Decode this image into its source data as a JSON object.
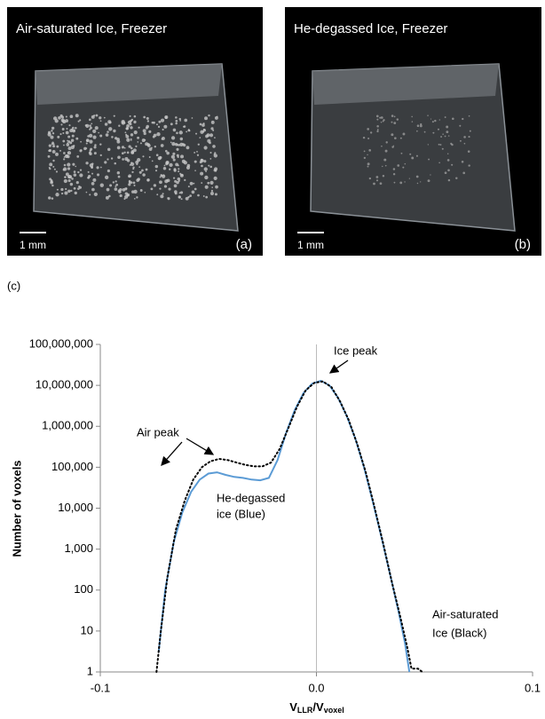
{
  "panels": [
    {
      "title": "Air-saturated Ice, Freezer",
      "scale": "1 mm",
      "label": "(a)"
    },
    {
      "title": "He-degassed Ice, Freezer",
      "scale": "1 mm",
      "label": "(b)"
    }
  ],
  "chart_data": {
    "type": "line",
    "panel_label": "(c)",
    "ylabel": "Number of voxels",
    "xlabel": {
      "v1": "V",
      "s1": "LLR",
      "v2": "/V",
      "s2": "voxel"
    },
    "yscale": "log",
    "xlim": [
      -0.1,
      0.1
    ],
    "ylim": [
      1,
      100000000
    ],
    "xticks": [
      -0.1,
      {
        "value": 0,
        "label": "0.0"
      },
      0.1
    ],
    "yticks": [
      1,
      10,
      100,
      {
        "value": 1000,
        "label": "1,000"
      },
      {
        "value": 10000,
        "label": "10,000"
      },
      {
        "value": 100000,
        "label": "100,000"
      },
      {
        "value": 1000000,
        "label": "1,000,000"
      },
      {
        "value": 10000000,
        "label": "10,000,000"
      },
      {
        "value": 100000000,
        "label": "100,000,000"
      }
    ],
    "vline": 0,
    "annotations": [
      "Ice peak",
      "Air peak",
      "He-degassed",
      "ice (Blue)",
      "Air-saturated",
      "Ice (Black)"
    ],
    "series": [
      {
        "color": "#5b9bd5",
        "style": "solid",
        "x": [
          -0.073,
          -0.07,
          -0.066,
          -0.062,
          -0.058,
          -0.054,
          -0.05,
          -0.046,
          -0.042,
          -0.038,
          -0.034,
          -0.03,
          -0.026,
          -0.022,
          -0.018,
          -0.014,
          -0.01,
          -0.006,
          -0.002,
          0.002,
          0.006,
          0.01,
          0.014,
          0.018,
          0.022,
          0.026,
          0.03,
          0.034,
          0.038,
          0.041,
          0.043
        ],
        "values": [
          3,
          100,
          1500,
          8000,
          25000,
          50000,
          70000,
          75000,
          65000,
          58000,
          55000,
          50000,
          48000,
          55000,
          150000,
          700000,
          2500000,
          6500000,
          11000000,
          13000000,
          10000000,
          5000000,
          1800000,
          500000,
          100000,
          15000,
          2000,
          250,
          30,
          5,
          1
        ]
      },
      {
        "color": "#000000",
        "style": "dotted",
        "x": [
          -0.074,
          -0.072,
          -0.069,
          -0.065,
          -0.061,
          -0.057,
          -0.053,
          -0.049,
          -0.045,
          -0.041,
          -0.037,
          -0.033,
          -0.029,
          -0.025,
          -0.021,
          -0.017,
          -0.013,
          -0.009,
          -0.005,
          -0.001,
          0.003,
          0.007,
          0.011,
          0.015,
          0.019,
          0.023,
          0.027,
          0.031,
          0.035,
          0.039,
          0.042,
          0.044,
          0.047,
          0.049
        ],
        "values": [
          1,
          10,
          200,
          3000,
          15000,
          50000,
          100000,
          140000,
          160000,
          150000,
          130000,
          115000,
          105000,
          105000,
          130000,
          280000,
          900000,
          3000000,
          7500000,
          11500000,
          12500000,
          9000000,
          4000000,
          1400000,
          350000,
          70000,
          10000,
          1300,
          150,
          20,
          4,
          1.2,
          1.2,
          1
        ]
      }
    ]
  }
}
